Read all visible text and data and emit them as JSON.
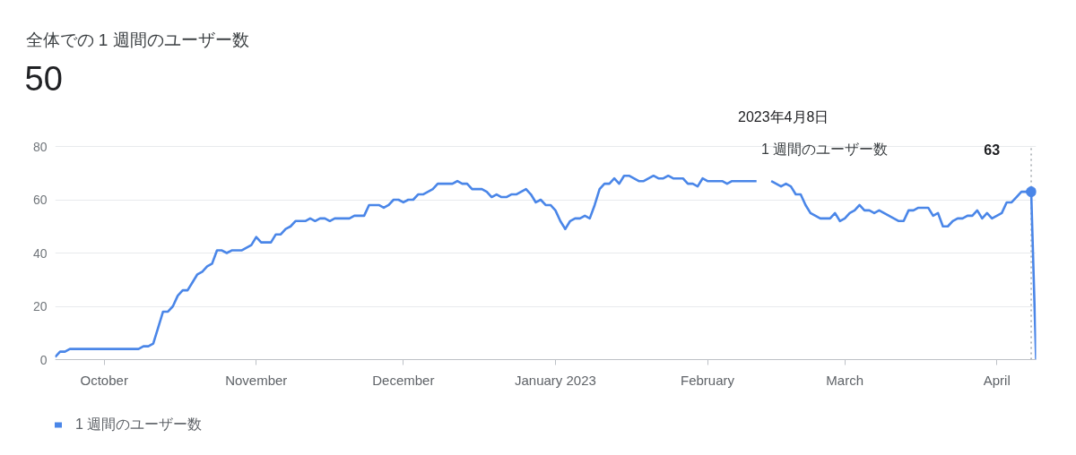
{
  "chart_data": {
    "type": "line",
    "title": "全体での 1 週間のユーザー数",
    "subtitle": "50",
    "x": [
      "2022-09-21",
      "2022-09-22",
      "2022-09-23",
      "2022-09-24",
      "2022-10-08",
      "2022-10-09",
      "2022-10-10",
      "2022-10-11",
      "2022-10-12",
      "2022-10-13",
      "2022-10-14",
      "2022-10-15",
      "2022-10-16",
      "2022-10-17",
      "2022-10-18",
      "2022-10-19",
      "2022-10-20",
      "2022-10-21",
      "2022-10-22",
      "2022-10-23",
      "2022-10-24",
      "2022-10-25",
      "2022-10-26",
      "2022-10-27",
      "2022-10-29",
      "2022-10-30",
      "2022-10-31",
      "2022-11-01",
      "2022-11-02",
      "2022-11-04",
      "2022-11-05",
      "2022-11-06",
      "2022-11-07",
      "2022-11-08",
      "2022-11-09",
      "2022-11-11",
      "2022-11-12",
      "2022-11-13",
      "2022-11-14",
      "2022-11-15",
      "2022-11-16",
      "2022-11-17",
      "2022-11-20",
      "2022-11-21",
      "2022-11-23",
      "2022-11-24",
      "2022-11-26",
      "2022-11-27",
      "2022-11-28",
      "2022-11-29",
      "2022-11-30",
      "2022-12-01",
      "2022-12-02",
      "2022-12-03",
      "2022-12-04",
      "2022-12-05",
      "2022-12-06",
      "2022-12-07",
      "2022-12-08",
      "2022-12-11",
      "2022-12-12",
      "2022-12-13",
      "2022-12-14",
      "2022-12-15",
      "2022-12-17",
      "2022-12-18",
      "2022-12-19",
      "2022-12-20",
      "2022-12-21",
      "2022-12-22",
      "2022-12-23",
      "2022-12-24",
      "2022-12-25",
      "2022-12-26",
      "2022-12-27",
      "2022-12-28",
      "2022-12-29",
      "2022-12-30",
      "2022-12-31",
      "2023-01-01",
      "2023-01-02",
      "2023-01-03",
      "2023-01-04",
      "2023-01-05",
      "2023-01-06",
      "2023-01-07",
      "2023-01-08",
      "2023-01-09",
      "2023-01-10",
      "2023-01-11",
      "2023-01-12",
      "2023-01-13",
      "2023-01-14",
      "2023-01-15",
      "2023-01-16",
      "2023-01-17",
      "2023-01-18",
      "2023-01-19",
      "2023-01-20",
      "2023-01-21",
      "2023-01-22",
      "2023-01-23",
      "2023-01-24",
      "2023-01-25",
      "2023-01-27",
      "2023-01-28",
      "2023-01-29",
      "2023-01-30",
      "2023-01-31",
      "2023-02-01",
      "2023-02-04",
      "2023-02-05",
      "2023-02-06",
      "2023-02-11",
      "2023-02-12",
      "2023-02-13",
      "2023-02-14",
      "2023-02-15",
      "2023-02-16",
      "2023-02-17",
      "2023-02-18",
      "2023-02-19",
      "2023-02-20",
      "2023-02-21",
      "2023-02-22",
      "2023-02-23",
      "2023-02-24",
      "2023-02-26",
      "2023-02-27",
      "2023-02-28",
      "2023-03-01",
      "2023-03-02",
      "2023-03-03",
      "2023-03-04",
      "2023-03-05",
      "2023-03-06",
      "2023-03-07",
      "2023-03-08",
      "2023-03-09",
      "2023-03-10",
      "2023-03-11",
      "2023-03-12",
      "2023-03-13",
      "2023-03-14",
      "2023-03-15",
      "2023-03-16",
      "2023-03-18",
      "2023-03-19",
      "2023-03-20",
      "2023-03-21",
      "2023-03-22",
      "2023-03-23",
      "2023-03-24",
      "2023-03-25",
      "2023-03-26",
      "2023-03-27",
      "2023-03-28",
      "2023-03-29",
      "2023-03-30",
      "2023-03-31",
      "2023-04-01",
      "2023-04-02",
      "2023-04-03",
      "2023-04-04",
      "2023-04-05",
      "2023-04-06",
      "2023-04-08",
      "2023-04-09"
    ],
    "series": [
      {
        "name": "1 週間のユーザー数",
        "color": "#4a86e8",
        "values": [
          1,
          3,
          3,
          4,
          4,
          5,
          5,
          6,
          12,
          18,
          18,
          20,
          24,
          26,
          26,
          29,
          32,
          33,
          35,
          36,
          41,
          41,
          40,
          41,
          41,
          42,
          43,
          46,
          44,
          44,
          47,
          47,
          49,
          50,
          52,
          52,
          53,
          52,
          53,
          53,
          52,
          53,
          53,
          54,
          54,
          58,
          58,
          57,
          58,
          60,
          60,
          59,
          60,
          60,
          62,
          62,
          63,
          64,
          66,
          66,
          67,
          66,
          66,
          64,
          64,
          63,
          61,
          62,
          61,
          61,
          62,
          62,
          63,
          64,
          62,
          59,
          60,
          58,
          58,
          56,
          52,
          49,
          52,
          53,
          53,
          54,
          53,
          58,
          64,
          66,
          66,
          68,
          66,
          69,
          69,
          68,
          67,
          67,
          68,
          69,
          68,
          68,
          69,
          68,
          68,
          66,
          66,
          65,
          68,
          67,
          67,
          66,
          67,
          67,
          null,
          null,
          67,
          66,
          65,
          66,
          65,
          62,
          62,
          58,
          55,
          54,
          53,
          53,
          55,
          52,
          53,
          55,
          56,
          58,
          56,
          56,
          55,
          56,
          55,
          54,
          53,
          52,
          52,
          56,
          56,
          57,
          57,
          54,
          55,
          50,
          50,
          52,
          53,
          53,
          54,
          54,
          56,
          53,
          55,
          53,
          54,
          55,
          59,
          59,
          61,
          63,
          63,
          0
        ]
      }
    ],
    "xlim": [
      "2022-09-21",
      "2023-04-09"
    ],
    "xticks": [
      {
        "value": "2022-10-01",
        "label": "October"
      },
      {
        "value": "2022-11-01",
        "label": "November"
      },
      {
        "value": "2022-12-01",
        "label": "December"
      },
      {
        "value": "2023-01-01",
        "label": "January 2023"
      },
      {
        "value": "2023-02-01",
        "label": "February"
      },
      {
        "value": "2023-03-01",
        "label": "March"
      },
      {
        "value": "2023-04-01",
        "label": "April"
      }
    ],
    "ylim": [
      0,
      80
    ],
    "yticks": [
      0,
      20,
      40,
      60,
      80
    ],
    "grid": "y",
    "legend": "bottom left",
    "line_style": "solid",
    "ref_lines": [
      {
        "axis": "x",
        "value": "2023-04-08",
        "line_style": "dotted",
        "color": "#9aa0a6"
      }
    ],
    "annotations": [
      "2023年4月8日",
      "63"
    ]
  }
}
